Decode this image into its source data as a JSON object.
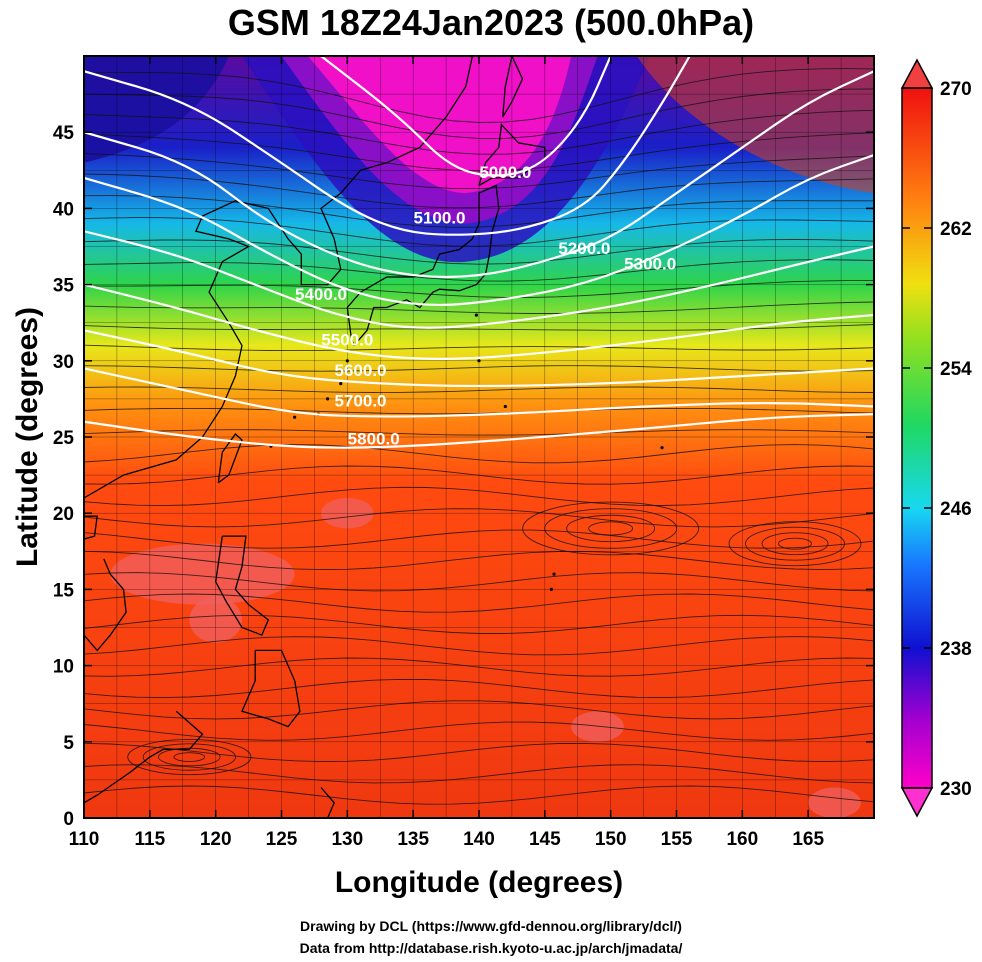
{
  "title": "GSM 18Z24Jan2023 (500.0hPa)",
  "x_axis": {
    "label": "Longitude (degrees)",
    "ticks": [
      "110",
      "115",
      "120",
      "125",
      "130",
      "135",
      "140",
      "145",
      "150",
      "155",
      "160",
      "165"
    ]
  },
  "y_axis": {
    "label": "Latitude  (degrees)",
    "ticks": [
      "0",
      "5",
      "10",
      "15",
      "20",
      "25",
      "30",
      "35",
      "40",
      "45"
    ]
  },
  "colorbar": {
    "ticks": [
      "230",
      "238",
      "246",
      "254",
      "262",
      "270"
    ]
  },
  "credits": {
    "line1": "Drawing by DCL (https://www.gfd-dennou.org/library/dcl/)",
    "line2": "Data from http://database.rish.kyoto-u.ac.jp/arch/jmadata/"
  },
  "chart_data": {
    "type": "heatmap",
    "title": "GSM 18Z24Jan2023 (500.0hPa)",
    "xlabel": "Longitude (degrees)",
    "ylabel": "Latitude  (degrees)",
    "xlim": [
      110,
      170
    ],
    "ylim": [
      0,
      50
    ],
    "colorbar_range": [
      230,
      270
    ],
    "colorbar_ticks": [
      230,
      238,
      246,
      254,
      262,
      270
    ],
    "grid": true,
    "overlays": [
      "streamlines",
      "coastlines",
      "geopotential height contours"
    ],
    "contours": [
      {
        "label": "5000.0",
        "value": 5000,
        "label_at": [
          142,
          42
        ]
      },
      {
        "label": "5100.0",
        "value": 5100,
        "label_at": [
          137,
          39
        ]
      },
      {
        "label": "5200.0",
        "value": 5200,
        "label_at": [
          148,
          37
        ]
      },
      {
        "label": "5300.0",
        "value": 5300,
        "label_at": [
          153,
          36
        ]
      },
      {
        "label": "5400.0",
        "value": 5400,
        "label_at": [
          128,
          34
        ]
      },
      {
        "label": "5500.0",
        "value": 5500,
        "label_at": [
          130,
          31
        ]
      },
      {
        "label": "5600.0",
        "value": 5600,
        "label_at": [
          131,
          29
        ]
      },
      {
        "label": "5700.0",
        "value": 5700,
        "label_at": [
          131,
          27
        ]
      },
      {
        "label": "5800.0",
        "value": 5800,
        "label_at": [
          132,
          24.5
        ]
      }
    ],
    "colors": {
      "cold": "#ff00cc",
      "warm": "#ee2200"
    }
  }
}
